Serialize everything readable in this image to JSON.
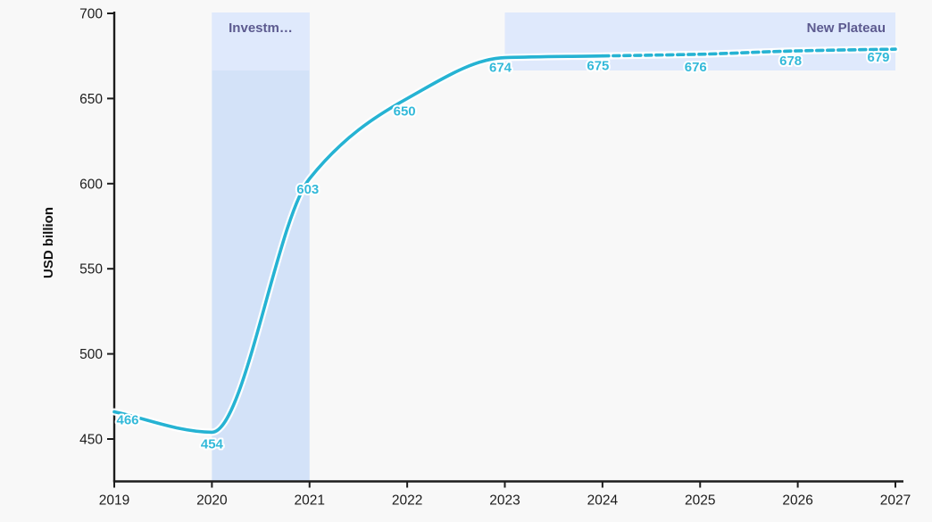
{
  "chart_data": {
    "type": "line",
    "title": "",
    "xlabel": "",
    "ylabel": "USD billion",
    "x": [
      2019,
      2020,
      2021,
      2022,
      2023,
      2024,
      2025,
      2026,
      2027
    ],
    "values": [
      466,
      454,
      603,
      650,
      674,
      675,
      676,
      678,
      679
    ],
    "yticks": [
      450,
      500,
      550,
      600,
      650,
      700
    ],
    "ylim": [
      425,
      700
    ],
    "xlim": [
      2019,
      2027
    ],
    "grid": false,
    "legend_position": "none",
    "line_style": {
      "solid_range": [
        2019,
        2024
      ],
      "dashed_range": [
        2024,
        2027
      ]
    },
    "annotations": [
      {
        "type": "vertical-band",
        "label": "Investm…",
        "x_start": 2020,
        "x_end": 2021
      },
      {
        "type": "horizontal-band",
        "label": "New Plateau",
        "x_start": 2023,
        "x_end": 2027,
        "y_top": 700,
        "y_bottom": 666
      }
    ],
    "colors": {
      "line": "#26b3d3",
      "point_label": "#33b9d9",
      "vertical_band": "#d3e2f8",
      "label_band": "#dfe9fc",
      "annotation_text": "#5c5a8f",
      "axis": "#1c1c1c",
      "background": "#f8f8f8"
    }
  }
}
